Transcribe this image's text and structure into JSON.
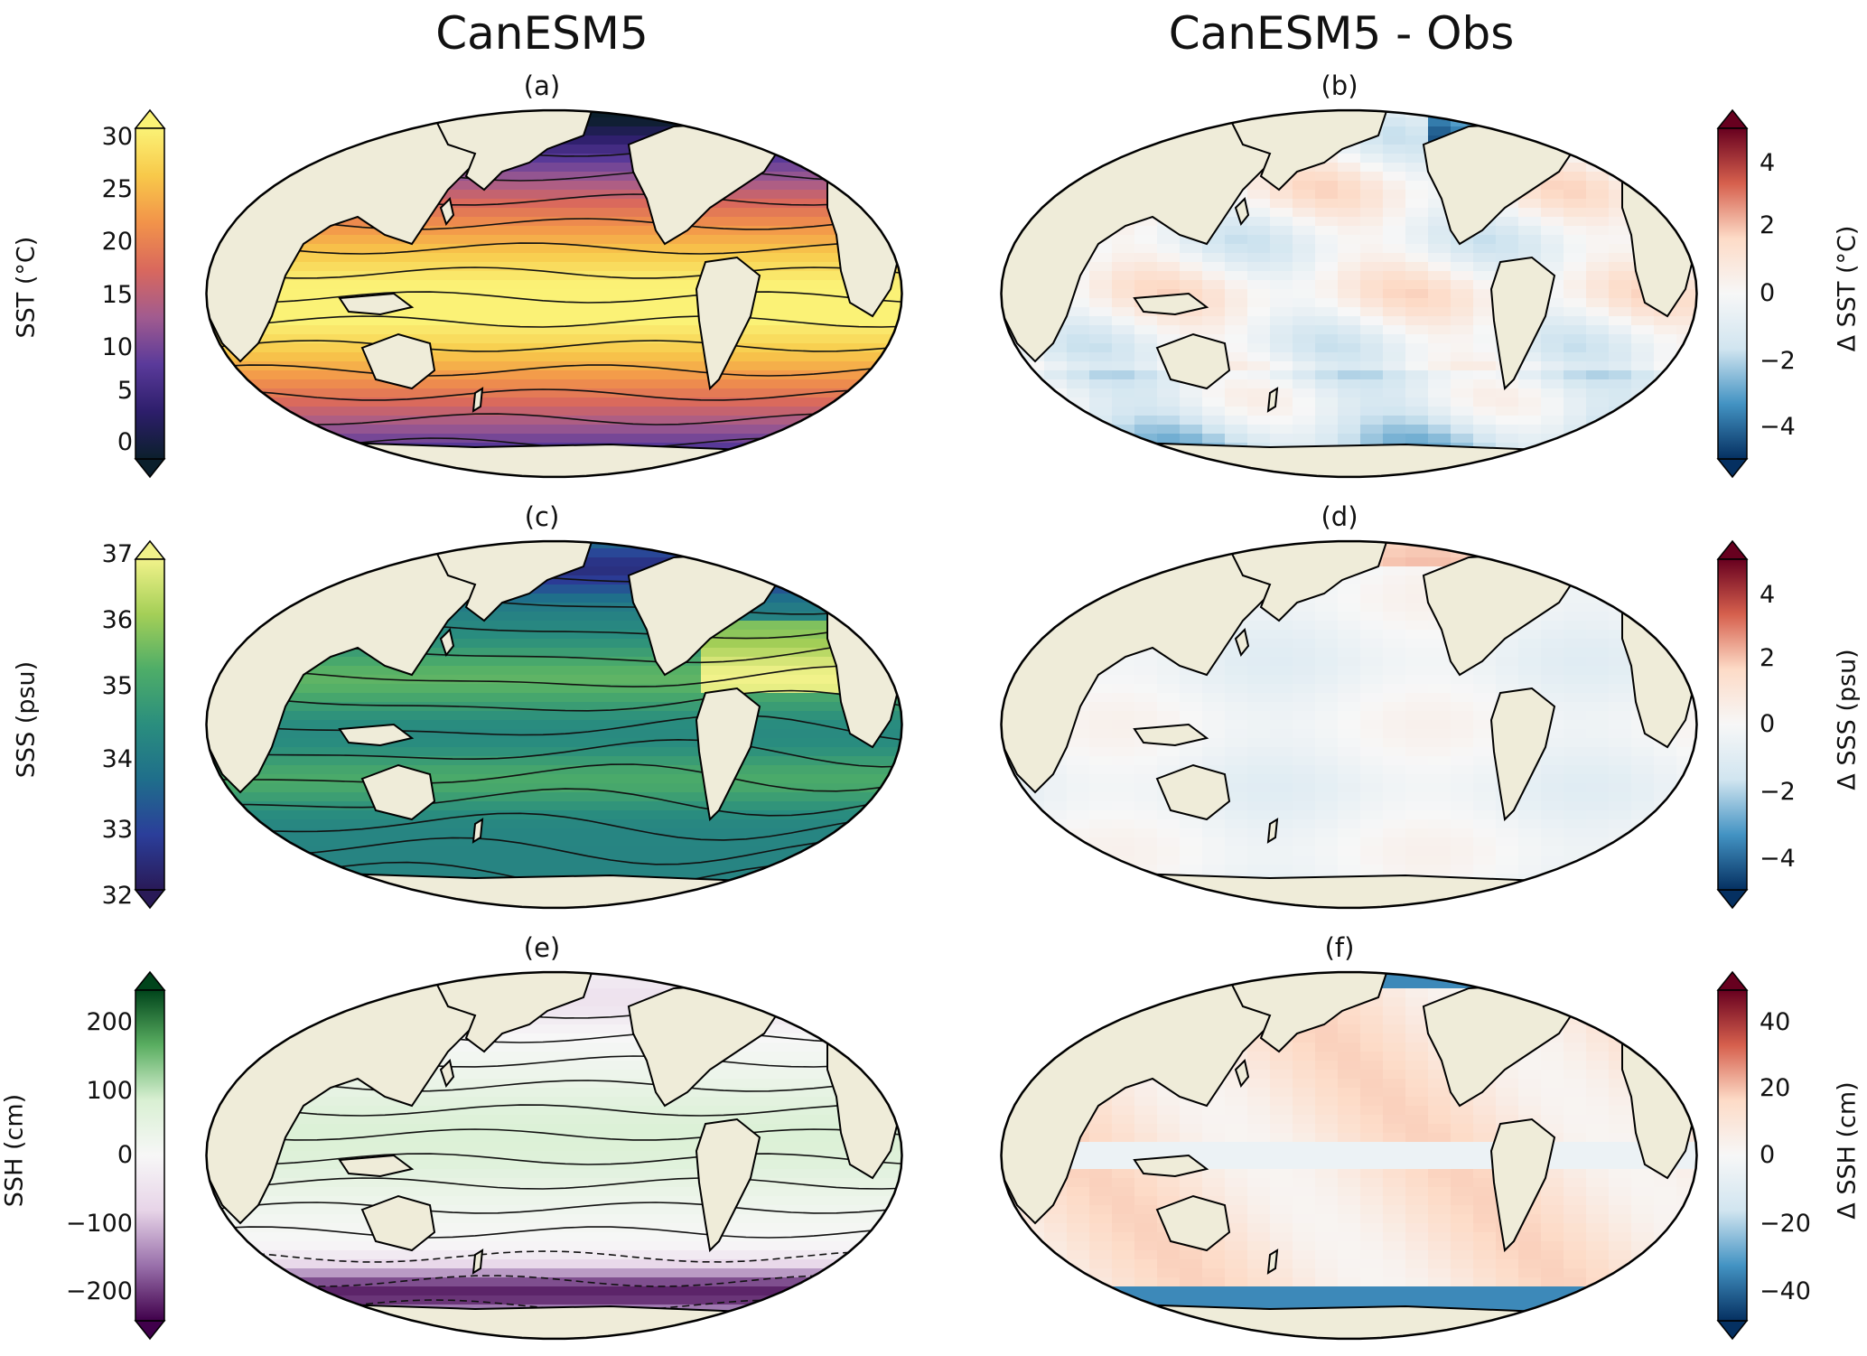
{
  "columns": {
    "left": "CanESM5",
    "right": "CanESM5 - Obs"
  },
  "panels": [
    {
      "id": "a",
      "label": "(a)",
      "variable": "SST",
      "palette": "thermal"
    },
    {
      "id": "b",
      "label": "(b)",
      "variable": "ΔSST",
      "palette": "rdbu"
    },
    {
      "id": "c",
      "label": "(c)",
      "variable": "SSS",
      "palette": "haline"
    },
    {
      "id": "d",
      "label": "(d)",
      "variable": "ΔSSS",
      "palette": "rdbu"
    },
    {
      "id": "e",
      "label": "(e)",
      "variable": "SSH",
      "palette": "prgn"
    },
    {
      "id": "f",
      "label": "(f)",
      "variable": "ΔSSH",
      "palette": "rdbu"
    }
  ],
  "colorbars": [
    {
      "id": "sst",
      "label": "SST (°C)",
      "ticks": [
        "30",
        "25",
        "20",
        "15",
        "10",
        "5",
        "0"
      ],
      "range": [
        -2.5,
        32
      ],
      "extend": "both"
    },
    {
      "id": "dsst",
      "label": "Δ SST (°C)",
      "ticks": [
        "4",
        "2",
        "0",
        "−2",
        "−4"
      ],
      "range": [
        -5,
        5
      ],
      "extend": "both"
    },
    {
      "id": "sss",
      "label": "SSS (psu)",
      "ticks": [
        "37",
        "36",
        "35",
        "34",
        "33",
        "32"
      ],
      "range": [
        32,
        37
      ],
      "extend": "both"
    },
    {
      "id": "dsss",
      "label": "Δ SSS (psu)",
      "ticks": [
        "4",
        "2",
        "0",
        "−2",
        "−4"
      ],
      "range": [
        -5,
        5
      ],
      "extend": "both"
    },
    {
      "id": "ssh",
      "label": "SSH (cm)",
      "ticks": [
        "200",
        "100",
        "0",
        "−100",
        "−200"
      ],
      "range": [
        -250,
        250
      ],
      "extend": "both"
    },
    {
      "id": "dssh",
      "label": "Δ SSH (cm)",
      "ticks": [
        "40",
        "20",
        "0",
        "−20",
        "−40"
      ],
      "range": [
        -50,
        50
      ],
      "extend": "both"
    }
  ],
  "colors": {
    "land": "#efecd9",
    "coast": "#000000",
    "thermal": [
      "#0b1f2c",
      "#2d1e6b",
      "#5a3a9a",
      "#a15b8f",
      "#d9685d",
      "#f2934a",
      "#f8c94a",
      "#fbf276"
    ],
    "haline": [
      "#291a57",
      "#2b3e9a",
      "#1f6e8b",
      "#2a8e7e",
      "#4ead68",
      "#a4cf57",
      "#f1f28a"
    ],
    "prgn": [
      "#40004b",
      "#9970ab",
      "#e7d4e8",
      "#f7f7f7",
      "#d9f0d3",
      "#5aae61",
      "#00441b"
    ],
    "rdbu": [
      "#053061",
      "#4393c3",
      "#d1e5f0",
      "#f7f7f7",
      "#fddbc7",
      "#d6604d",
      "#67001f"
    ]
  }
}
